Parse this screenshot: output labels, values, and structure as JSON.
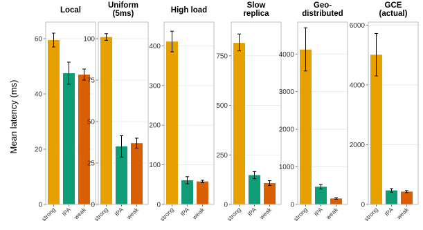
{
  "chart_data": {
    "type": "bar",
    "ylabel": "Mean latency (ms)",
    "categories": [
      "strong",
      "IPA",
      "weak"
    ],
    "colors": {
      "strong": "#E6A000",
      "IPA": "#0E9D77",
      "weak": "#D95F02"
    },
    "grid": true,
    "legend": "none",
    "panels": [
      {
        "title": [
          "Local"
        ],
        "ylim": [
          0,
          66
        ],
        "yticks": [
          0,
          20,
          40,
          60
        ],
        "values": [
          59.5,
          47.5,
          47
        ],
        "errors": [
          [
            57,
            62
          ],
          [
            43.5,
            51.5
          ],
          [
            45,
            49
          ]
        ]
      },
      {
        "title": [
          "Uniform",
          "(5ms)"
        ],
        "ylim": [
          0,
          110
        ],
        "yticks": [
          0,
          25,
          50,
          75,
          100
        ],
        "values": [
          101,
          35,
          37
        ],
        "errors": [
          [
            99,
            103
          ],
          [
            28.5,
            41.5
          ],
          [
            34,
            40
          ]
        ]
      },
      {
        "title": [
          "High load"
        ],
        "ylim": [
          0,
          460
        ],
        "yticks": [
          0,
          100,
          200,
          300,
          400
        ],
        "values": [
          411,
          61,
          58
        ],
        "errors": [
          [
            385,
            437
          ],
          [
            52,
            70
          ],
          [
            55,
            61
          ]
        ]
      },
      {
        "title": [
          "Slow",
          "replica"
        ],
        "ylim": [
          0,
          920
        ],
        "yticks": [
          0,
          250,
          500,
          750
        ],
        "values": [
          815,
          148,
          108
        ],
        "errors": [
          [
            775,
            860
          ],
          [
            130,
            166
          ],
          [
            96,
            120
          ]
        ]
      },
      {
        "title": [
          "Geo-",
          "distributed"
        ],
        "ylim": [
          0,
          4850
        ],
        "yticks": [
          0,
          1000,
          2000,
          3000,
          4000
        ],
        "values": [
          4120,
          470,
          160
        ],
        "errors": [
          [
            3550,
            4700
          ],
          [
            410,
            530
          ],
          [
            140,
            180
          ]
        ]
      },
      {
        "title": [
          "GCE",
          "(actual)"
        ],
        "ylim": [
          0,
          6100
        ],
        "yticks": [
          0,
          2000,
          4000,
          6000
        ],
        "values": [
          5010,
          470,
          430
        ],
        "errors": [
          [
            4300,
            5720
          ],
          [
            410,
            530
          ],
          [
            395,
            465
          ]
        ]
      }
    ]
  }
}
